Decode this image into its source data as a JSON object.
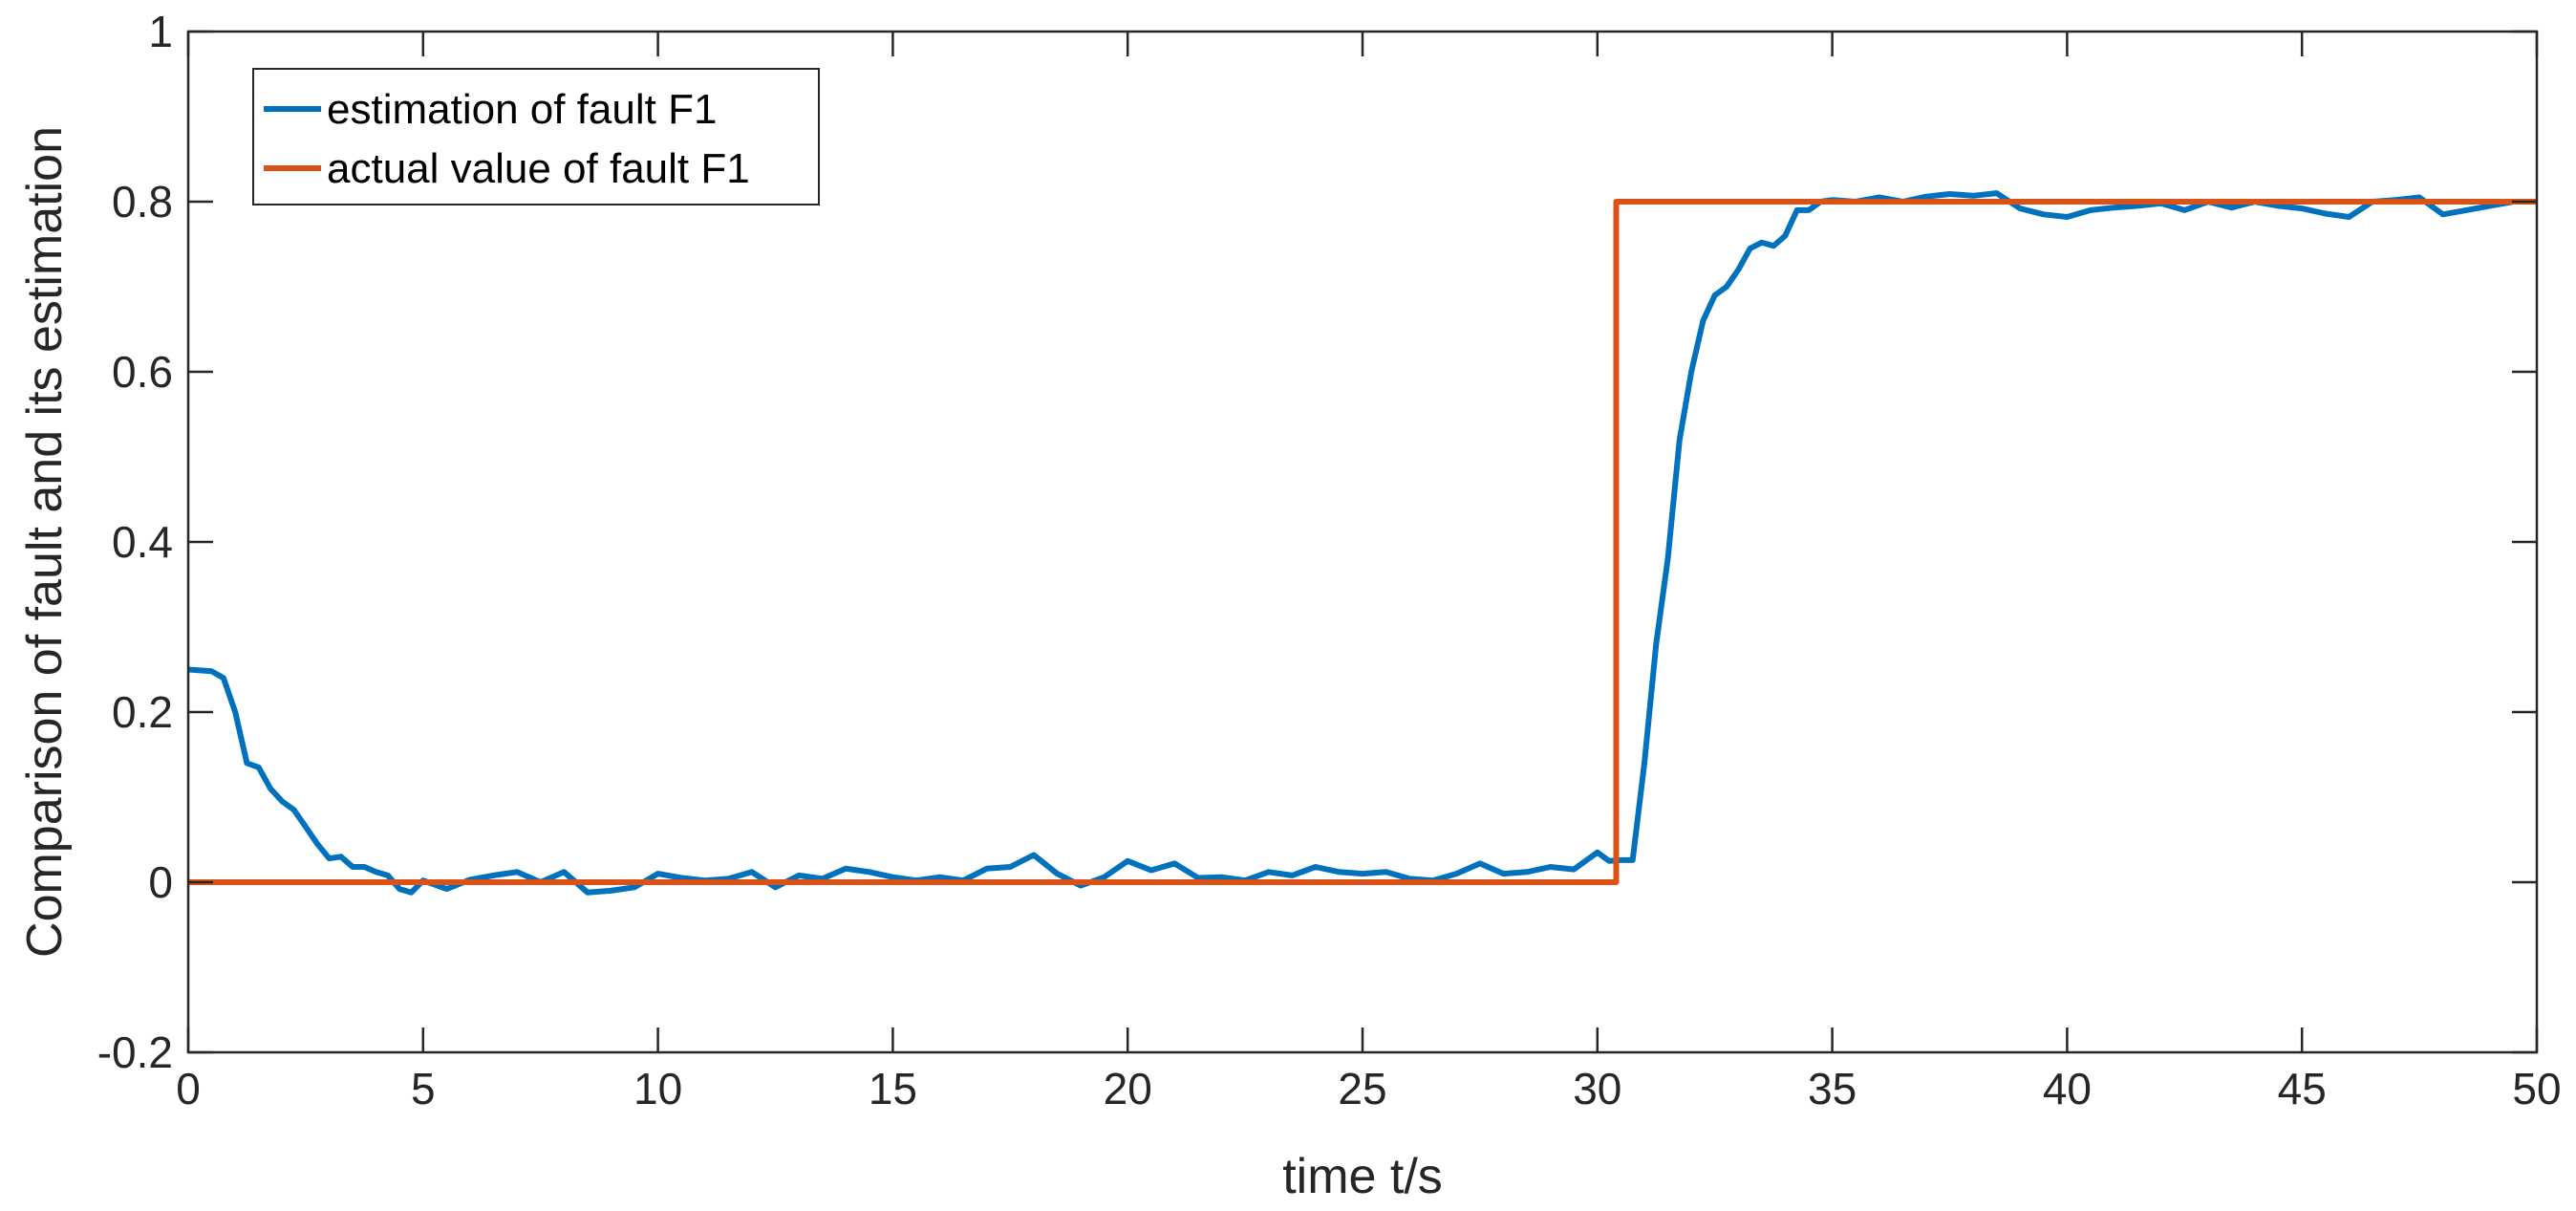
{
  "chart_data": {
    "type": "line",
    "xlabel": "time t/s",
    "ylabel": "Comparison of fault  and its estimation",
    "xlim": [
      0,
      50
    ],
    "ylim": [
      -0.2,
      1
    ],
    "xticks": [
      0,
      5,
      10,
      15,
      20,
      25,
      30,
      35,
      40,
      45,
      50
    ],
    "yticks": [
      -0.2,
      0,
      0.2,
      0.4,
      0.6,
      0.8,
      1
    ],
    "xtick_labels": [
      "0",
      "5",
      "10",
      "15",
      "20",
      "25",
      "30",
      "35",
      "40",
      "45",
      "50"
    ],
    "ytick_labels": [
      "-0.2",
      "0",
      "0.2",
      "0.4",
      "0.6",
      "0.8",
      "1"
    ],
    "grid": false,
    "legend_position": "top-left",
    "series": [
      {
        "name": "estimation of fault F1",
        "color": "#0072BD",
        "x": [
          0,
          0.25,
          0.5,
          0.75,
          1.0,
          1.25,
          1.5,
          1.75,
          2.0,
          2.25,
          2.5,
          2.75,
          3.0,
          3.25,
          3.5,
          3.75,
          4.0,
          4.25,
          4.5,
          4.75,
          5.0,
          5.5,
          6.0,
          6.5,
          7.0,
          7.5,
          8.0,
          8.5,
          9.0,
          9.5,
          10.0,
          10.5,
          11.0,
          11.5,
          12.0,
          12.5,
          13.0,
          13.5,
          14.0,
          14.5,
          15.0,
          15.5,
          16.0,
          16.5,
          17.0,
          17.5,
          18.0,
          18.5,
          19.0,
          19.5,
          20.0,
          20.5,
          21.0,
          21.5,
          22.0,
          22.5,
          23.0,
          23.5,
          24.0,
          24.5,
          25.0,
          25.5,
          26.0,
          26.5,
          27.0,
          27.5,
          28.0,
          28.5,
          29.0,
          29.5,
          30.0,
          30.25,
          30.5,
          30.75,
          31.0,
          31.25,
          31.5,
          31.75,
          32.0,
          32.25,
          32.5,
          32.75,
          33.0,
          33.25,
          33.5,
          33.75,
          34.0,
          34.25,
          34.5,
          34.75,
          35.0,
          35.5,
          36.0,
          36.5,
          37.0,
          37.5,
          38.0,
          38.5,
          39.0,
          39.5,
          40.0,
          40.5,
          41.0,
          41.5,
          42.0,
          42.5,
          43.0,
          43.5,
          44.0,
          44.5,
          45.0,
          45.5,
          46.0,
          46.5,
          47.0,
          47.5,
          48.0,
          48.5,
          49.0,
          49.5,
          50.0
        ],
        "y": [
          0.25,
          0.249,
          0.248,
          0.24,
          0.2,
          0.14,
          0.135,
          0.11,
          0.095,
          0.085,
          0.065,
          0.045,
          0.028,
          0.03,
          0.018,
          0.018,
          0.012,
          0.008,
          -0.008,
          -0.012,
          0.002,
          -0.008,
          0.003,
          0.008,
          0.012,
          0.0,
          0.012,
          -0.012,
          -0.01,
          -0.006,
          0.01,
          0.005,
          0.002,
          0.004,
          0.012,
          -0.006,
          0.008,
          0.004,
          0.016,
          0.012,
          0.006,
          0.002,
          0.006,
          0.002,
          0.016,
          0.018,
          0.032,
          0.01,
          -0.004,
          0.006,
          0.025,
          0.014,
          0.022,
          0.005,
          0.006,
          0.002,
          0.012,
          0.008,
          0.018,
          0.012,
          0.01,
          0.012,
          0.004,
          0.002,
          0.01,
          0.022,
          0.01,
          0.012,
          0.018,
          0.015,
          0.035,
          0.025,
          0.026,
          0.026,
          0.14,
          0.28,
          0.38,
          0.52,
          0.6,
          0.66,
          0.69,
          0.7,
          0.72,
          0.745,
          0.752,
          0.748,
          0.76,
          0.79,
          0.79,
          0.8,
          0.802,
          0.8,
          0.805,
          0.8,
          0.806,
          0.809,
          0.807,
          0.81,
          0.792,
          0.785,
          0.782,
          0.79,
          0.793,
          0.795,
          0.798,
          0.79,
          0.8,
          0.793,
          0.8,
          0.795,
          0.792,
          0.786,
          0.782,
          0.8,
          0.802,
          0.805,
          0.785,
          0.79,
          0.795,
          0.8,
          0.8
        ]
      },
      {
        "name": "actual value of fault F1",
        "color": "#D95319",
        "x": [
          0,
          30.4,
          30.4,
          50
        ],
        "y": [
          0,
          0,
          0.8,
          0.8
        ]
      }
    ]
  }
}
